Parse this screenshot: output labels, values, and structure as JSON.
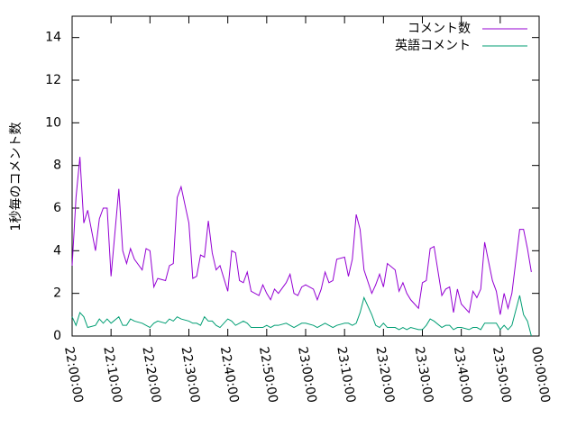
{
  "chart_data": {
    "type": "line",
    "y_label": "1秒毎のコメント数",
    "x": [
      "22:00:00",
      "22:01:00",
      "22:02:00",
      "22:03:00",
      "22:04:00",
      "22:06:00",
      "22:07:00",
      "22:08:00",
      "22:09:00",
      "22:10:00",
      "22:12:00",
      "22:13:00",
      "22:14:00",
      "22:15:00",
      "22:16:00",
      "22:18:00",
      "22:19:00",
      "22:20:00",
      "22:21:00",
      "22:22:00",
      "22:24:00",
      "22:25:00",
      "22:26:00",
      "22:27:00",
      "22:28:00",
      "22:30:00",
      "22:31:00",
      "22:32:00",
      "22:33:00",
      "22:34:00",
      "22:35:00",
      "22:36:00",
      "22:37:00",
      "22:38:00",
      "22:40:00",
      "22:41:00",
      "22:42:00",
      "22:43:00",
      "22:44:00",
      "22:45:00",
      "22:46:00",
      "22:48:00",
      "22:49:00",
      "22:50:00",
      "22:51:00",
      "22:52:00",
      "22:53:00",
      "22:55:00",
      "22:56:00",
      "22:57:00",
      "22:58:00",
      "22:59:00",
      "23:00:00",
      "23:02:00",
      "23:03:00",
      "23:04:00",
      "23:05:00",
      "23:06:00",
      "23:07:00",
      "23:08:00",
      "23:10:00",
      "23:11:00",
      "23:12:00",
      "23:13:00",
      "23:14:00",
      "23:15:00",
      "23:17:00",
      "23:18:00",
      "23:19:00",
      "23:20:00",
      "23:21:00",
      "23:23:00",
      "23:24:00",
      "23:25:00",
      "23:26:00",
      "23:27:00",
      "23:29:00",
      "23:30:00",
      "23:31:00",
      "23:32:00",
      "23:33:00",
      "23:35:00",
      "23:36:00",
      "23:37:00",
      "23:38:00",
      "23:39:00",
      "23:40:00",
      "23:42:00",
      "23:43:00",
      "23:44:00",
      "23:45:00",
      "23:46:00",
      "23:48:00",
      "23:49:00",
      "23:50:00",
      "23:51:00",
      "23:52:00",
      "23:53:00",
      "23:55:00",
      "23:56:00",
      "23:57:00",
      "23:58:00"
    ],
    "series": [
      {
        "name": "コメント数",
        "color": "#9400d3",
        "values": [
          3.3,
          6.5,
          8.4,
          5.3,
          5.9,
          4.0,
          5.5,
          6.0,
          6.0,
          2.8,
          6.9,
          4.0,
          3.4,
          4.1,
          3.6,
          3.1,
          4.1,
          4.0,
          2.3,
          2.7,
          2.6,
          3.3,
          3.4,
          6.5,
          7.0,
          5.3,
          2.7,
          2.8,
          3.8,
          3.7,
          5.4,
          3.9,
          3.1,
          3.3,
          2.1,
          4.0,
          3.9,
          2.6,
          2.5,
          3.0,
          2.1,
          1.9,
          2.4,
          2.0,
          1.7,
          2.2,
          2.0,
          2.5,
          2.9,
          2.0,
          1.9,
          2.3,
          2.4,
          2.2,
          1.7,
          2.2,
          3.0,
          2.5,
          2.6,
          3.6,
          3.7,
          2.8,
          3.6,
          5.7,
          5.0,
          3.1,
          2.0,
          2.4,
          2.9,
          2.3,
          3.4,
          3.1,
          2.1,
          2.5,
          2.0,
          1.7,
          1.3,
          2.5,
          2.6,
          4.1,
          4.2,
          1.9,
          2.2,
          2.3,
          1.1,
          2.2,
          1.5,
          1.1,
          2.1,
          1.8,
          2.2,
          4.4,
          2.6,
          2.1,
          1.0,
          2.0,
          1.3,
          2.0,
          5.0,
          5.0,
          4.1,
          3.0
        ]
      },
      {
        "name": "英語コメント",
        "color": "#009e73",
        "values": [
          0.9,
          0.5,
          1.1,
          0.9,
          0.4,
          0.5,
          0.8,
          0.6,
          0.8,
          0.6,
          0.9,
          0.5,
          0.5,
          0.8,
          0.7,
          0.6,
          0.5,
          0.4,
          0.6,
          0.7,
          0.6,
          0.8,
          0.7,
          0.9,
          0.8,
          0.7,
          0.6,
          0.6,
          0.5,
          0.9,
          0.7,
          0.7,
          0.5,
          0.4,
          0.8,
          0.7,
          0.5,
          0.6,
          0.7,
          0.6,
          0.4,
          0.4,
          0.4,
          0.5,
          0.4,
          0.5,
          0.5,
          0.6,
          0.5,
          0.4,
          0.5,
          0.6,
          0.6,
          0.5,
          0.4,
          0.5,
          0.6,
          0.5,
          0.4,
          0.5,
          0.6,
          0.6,
          0.5,
          0.6,
          1.1,
          1.8,
          1.0,
          0.5,
          0.4,
          0.6,
          0.4,
          0.4,
          0.3,
          0.4,
          0.3,
          0.4,
          0.3,
          0.3,
          0.5,
          0.8,
          0.7,
          0.4,
          0.5,
          0.5,
          0.3,
          0.4,
          0.4,
          0.3,
          0.4,
          0.4,
          0.3,
          0.6,
          0.6,
          0.6,
          0.3,
          0.5,
          0.3,
          0.5,
          1.9,
          1.0,
          0.7,
          0.0
        ]
      }
    ],
    "xlim": [
      "22:00:00",
      "00:00:00"
    ],
    "xticks": [
      "22:00:00",
      "22:10:00",
      "22:20:00",
      "22:30:00",
      "22:40:00",
      "22:50:00",
      "23:00:00",
      "23:10:00",
      "23:20:00",
      "23:30:00",
      "23:40:00",
      "23:50:00",
      "00:00:00"
    ],
    "ylim": [
      0,
      15
    ],
    "yticks": [
      0,
      2,
      4,
      6,
      8,
      10,
      12,
      14
    ],
    "legend": "top-right",
    "grid": false
  }
}
